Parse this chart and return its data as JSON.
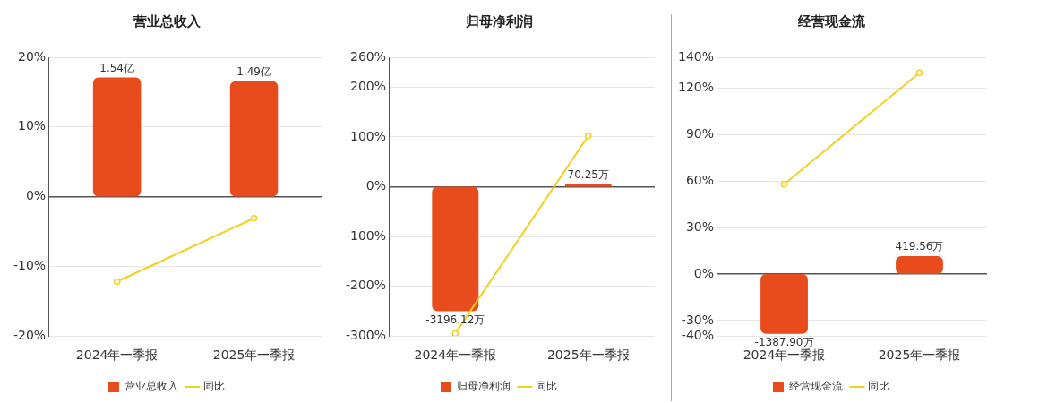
{
  "chart_data": [
    {
      "type": "bar",
      "title": "营业总收入",
      "categories": [
        "2024年一季报",
        "2025年一季报"
      ],
      "series": [
        {
          "name": "营业总收入",
          "axis": "y2",
          "color": "#e84c1c",
          "values": [
            1.54,
            1.49
          ],
          "value_labels": [
            "1.54亿",
            "1.49亿"
          ]
        },
        {
          "name": "同比",
          "type": "line",
          "color": "#f2d01e",
          "values": [
            -12.2,
            -3.1
          ]
        }
      ],
      "ylim": [
        -20,
        20
      ],
      "y2lim": [
        -1.8,
        1.8
      ],
      "yticks": [
        {
          "value": -20,
          "label": "-20%"
        },
        {
          "value": -10,
          "label": "-10%"
        },
        {
          "value": 0,
          "label": "0%"
        },
        {
          "value": 10,
          "label": "10%"
        },
        {
          "value": 20,
          "label": "20%"
        }
      ],
      "grid": "y",
      "legend": "bottom",
      "marker": "circle"
    },
    {
      "type": "bar",
      "title": "归母净利润",
      "categories": [
        "2024年一季报",
        "2025年一季报"
      ],
      "series": [
        {
          "name": "归母净利润",
          "axis": "y2",
          "color": "#e84c1c",
          "values": [
            -3196.12,
            70.25
          ],
          "value_labels": [
            "-3196.12万",
            "70.25万"
          ]
        },
        {
          "name": "同比",
          "type": "line",
          "color": "#f2d01e",
          "values": [
            -295,
            102
          ]
        }
      ],
      "ylim": [
        -300,
        260
      ],
      "y2lim": [
        -3835,
        3324
      ],
      "yticks": [
        {
          "value": -300,
          "label": "-300%"
        },
        {
          "value": -200,
          "label": "-200%"
        },
        {
          "value": -100,
          "label": "-100%"
        },
        {
          "value": 0,
          "label": "0%"
        },
        {
          "value": 100,
          "label": "100%"
        },
        {
          "value": 200,
          "label": "200%"
        },
        {
          "value": 260,
          "label": "260%"
        }
      ],
      "grid": "y",
      "legend": "bottom",
      "marker": "circle"
    },
    {
      "type": "bar",
      "title": "经营现金流",
      "categories": [
        "2024年一季报",
        "2025年一季报"
      ],
      "series": [
        {
          "name": "经营现金流",
          "axis": "y2",
          "color": "#e84c1c",
          "values": [
            -1387.9,
            419.56
          ],
          "value_labels": [
            "-1387.90万",
            "419.56万"
          ]
        },
        {
          "name": "同比",
          "type": "line",
          "color": "#f2d01e",
          "values": [
            58,
            130
          ]
        }
      ],
      "ylim": [
        -40,
        140
      ],
      "y2lim": [
        -1438,
        5034
      ],
      "yticks": [
        {
          "value": -40,
          "label": "-40%"
        },
        {
          "value": -30,
          "label": "-30%"
        },
        {
          "value": 0,
          "label": "0%"
        },
        {
          "value": 30,
          "label": "30%"
        },
        {
          "value": 60,
          "label": "60%"
        },
        {
          "value": 90,
          "label": "90%"
        },
        {
          "value": 120,
          "label": "120%"
        },
        {
          "value": 140,
          "label": "140%"
        }
      ],
      "grid": "y",
      "legend": "bottom",
      "marker": "circle"
    }
  ]
}
